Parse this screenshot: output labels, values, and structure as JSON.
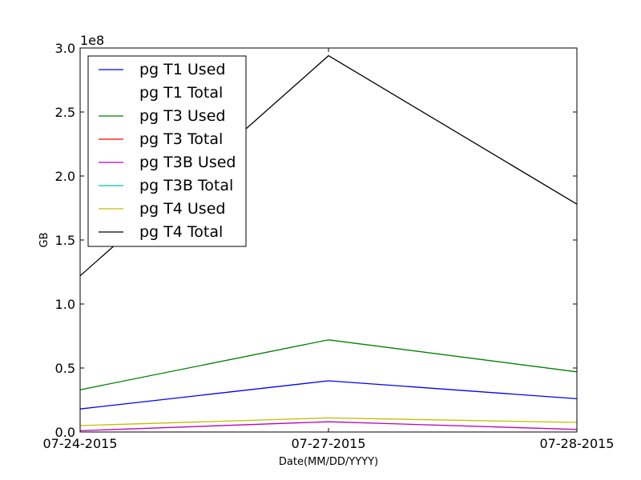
{
  "chart_data": {
    "type": "line",
    "title": "",
    "xlabel": "Date(MM/DD/YYYY)",
    "ylabel": "GB",
    "y_offset_label": "1e8",
    "y_scale": 100000000,
    "categories": [
      "07-24-2015",
      "07-27-2015",
      "07-28-2015"
    ],
    "ylim": [
      0,
      300000000
    ],
    "yticks": [
      {
        "value": 0,
        "label": "0.0"
      },
      {
        "value": 50000000,
        "label": "0.5"
      },
      {
        "value": 100000000,
        "label": "1.0"
      },
      {
        "value": 150000000,
        "label": "1.5"
      },
      {
        "value": 200000000,
        "label": "2.0"
      },
      {
        "value": 250000000,
        "label": "2.5"
      },
      {
        "value": 300000000,
        "label": "3.0"
      }
    ],
    "grid": false,
    "legend_position": "top-left",
    "series": [
      {
        "name": "pg T1 Used",
        "color": "#0000ff",
        "values": [
          18000000,
          40000000,
          26000000
        ]
      },
      {
        "name": "pg T1 Total",
        "color": "#ffffff",
        "values": [
          null,
          null,
          null
        ]
      },
      {
        "name": "pg T3 Used",
        "color": "#008000",
        "values": [
          33000000,
          72000000,
          47000000
        ]
      },
      {
        "name": "pg T3 Total",
        "color": "#ff0000",
        "values": [
          null,
          null,
          null
        ]
      },
      {
        "name": "pg T3B Used",
        "color": "#bf00bf",
        "values": [
          1000000,
          8000000,
          2000000
        ]
      },
      {
        "name": "pg T3B Total",
        "color": "#00bfbf",
        "values": [
          null,
          null,
          null
        ]
      },
      {
        "name": "pg T4 Used",
        "color": "#bfbf00",
        "values": [
          5000000,
          11000000,
          7500000
        ]
      },
      {
        "name": "pg T4 Total",
        "color": "#000000",
        "values": [
          122000000,
          294000000,
          178000000
        ]
      }
    ]
  }
}
